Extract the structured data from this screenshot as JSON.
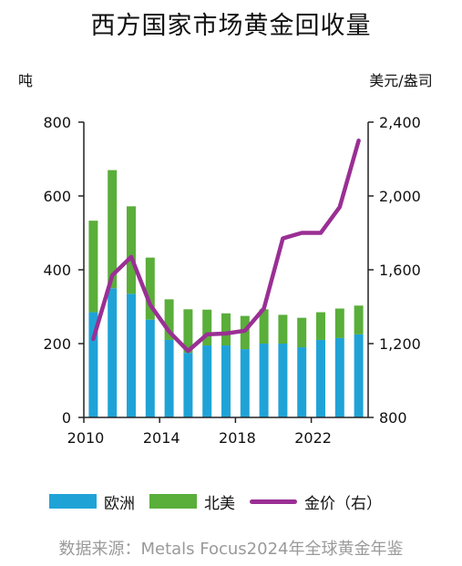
{
  "colors": {
    "europe": "#1fa3d7",
    "north_america": "#5aae3a",
    "gold_price": "#9a2f94",
    "axis": "#222222"
  },
  "legend": [
    {
      "label": "欧洲",
      "kind": "bar",
      "color": "#1fa3d7"
    },
    {
      "label": "北美",
      "kind": "bar",
      "color": "#5aae3a"
    },
    {
      "label": "金价（右）",
      "kind": "line",
      "color": "#9a2f94"
    }
  ],
  "source": "数据来源：Metals Focus2024年全球黄金年鉴",
  "chart_data": {
    "type": "bar",
    "title": "西方国家市场黄金回收量",
    "ylabel": "吨",
    "y2label": "美元/盎司",
    "ylim": [
      0,
      800
    ],
    "y2lim": [
      800,
      2400
    ],
    "yticks": [
      0,
      200,
      400,
      600,
      800
    ],
    "y2ticks": [
      800,
      1200,
      1600,
      2000,
      2400
    ],
    "ytick_labels": [
      "0",
      "200",
      "400",
      "600",
      "800"
    ],
    "y2tick_labels": [
      "800",
      "1,200",
      "1,600",
      "2,000",
      "2,400"
    ],
    "x": [
      2010,
      2011,
      2012,
      2013,
      2014,
      2015,
      2016,
      2017,
      2018,
      2019,
      2020,
      2021,
      2022,
      2023,
      2024
    ],
    "xtick_labels": [
      "2010",
      "2014",
      "2018",
      "2022"
    ],
    "xtick_positions": [
      2010,
      2014,
      2018,
      2022
    ],
    "stacked": true,
    "grid": false,
    "legend_position": "bottom",
    "series": [
      {
        "name": "欧洲",
        "type": "bar",
        "axis": "left",
        "values": [
          285,
          350,
          335,
          265,
          210,
          175,
          195,
          195,
          185,
          200,
          200,
          190,
          210,
          215,
          225
        ]
      },
      {
        "name": "北美",
        "type": "bar",
        "axis": "left",
        "values": [
          248,
          320,
          237,
          168,
          110,
          118,
          97,
          87,
          90,
          93,
          78,
          80,
          75,
          80,
          78
        ]
      },
      {
        "name": "金价（右）",
        "type": "line",
        "axis": "right",
        "values": [
          1225,
          1570,
          1670,
          1410,
          1265,
          1160,
          1250,
          1255,
          1270,
          1390,
          1770,
          1800,
          1800,
          1940,
          2300
        ]
      }
    ]
  }
}
